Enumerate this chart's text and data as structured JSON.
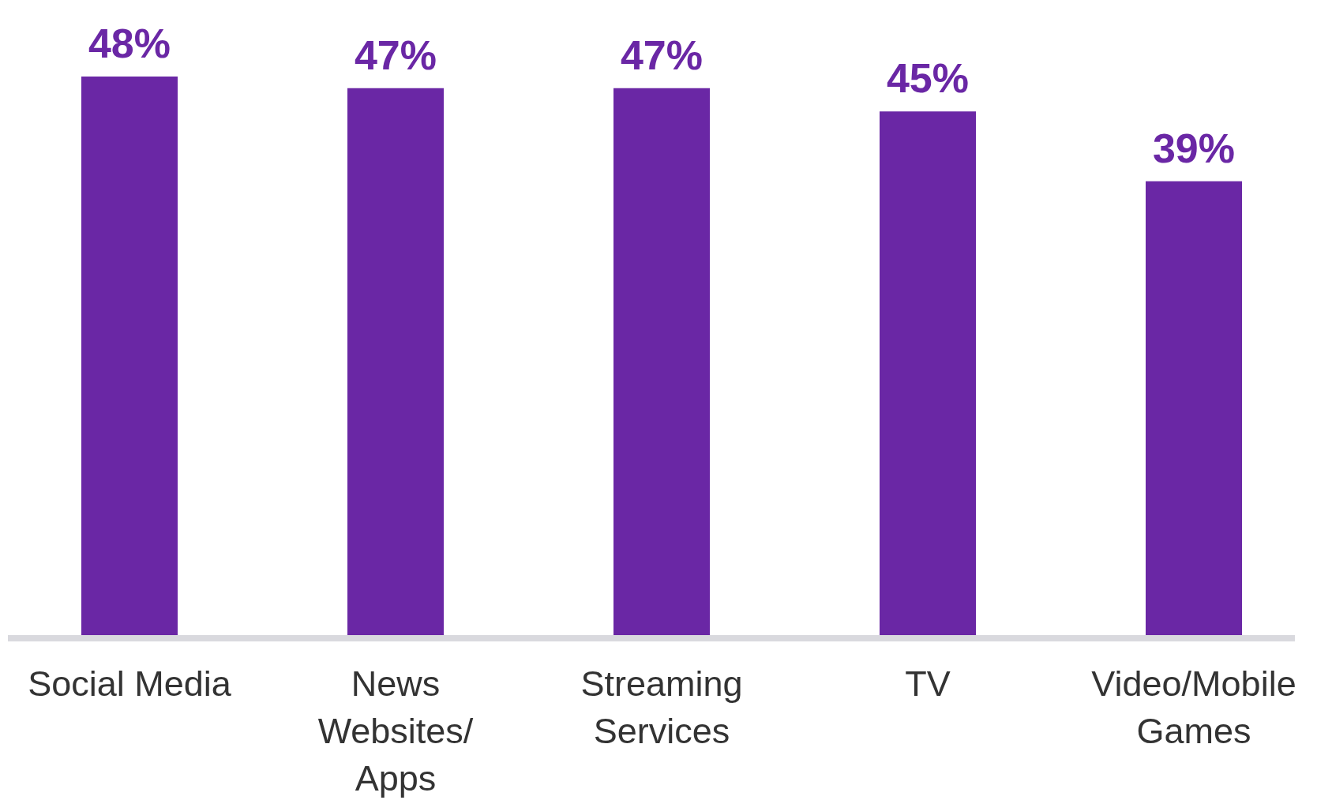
{
  "chart_data": {
    "type": "bar",
    "categories": [
      "Social Media",
      "News\nWebsites/\nApps",
      "Streaming\nServices",
      "TV",
      "Video/Mobile\nGames"
    ],
    "values": [
      48,
      47,
      47,
      45,
      39
    ],
    "value_labels": [
      "48%",
      "47%",
      "47%",
      "45%",
      "39%"
    ],
    "color": "#6a27a5"
  }
}
